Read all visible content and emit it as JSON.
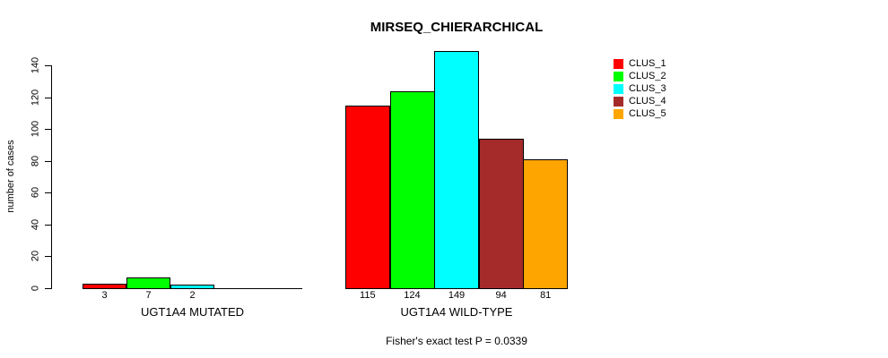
{
  "chart_data": {
    "type": "bar",
    "title": "MIRSEQ_CHIERARCHICAL",
    "ylabel": "number of cases",
    "xlabel": "",
    "caption": "Fisher's exact test P = 0.0339",
    "yticks": [
      0,
      20,
      40,
      60,
      80,
      100,
      120,
      140
    ],
    "ylim": [
      0,
      150
    ],
    "grid": false,
    "legend_position": "top-right",
    "categories": [
      "UGT1A4 MUTATED",
      "UGT1A4 WILD-TYPE"
    ],
    "series": [
      {
        "name": "CLUS_1",
        "color": "#FF0000",
        "values": [
          3,
          115
        ]
      },
      {
        "name": "CLUS_2",
        "color": "#00FF00",
        "values": [
          7,
          124
        ]
      },
      {
        "name": "CLUS_3",
        "color": "#00FFFF",
        "values": [
          2,
          149
        ]
      },
      {
        "name": "CLUS_4",
        "color": "#A52A2A",
        "values": [
          0,
          94
        ]
      },
      {
        "name": "CLUS_5",
        "color": "#FFA500",
        "values": [
          0,
          81
        ]
      }
    ],
    "bar_value_labels": {
      "UGT1A4 MUTATED": [
        3,
        7,
        2
      ],
      "UGT1A4 WILD-TYPE": [
        115,
        124,
        149,
        94,
        81
      ]
    }
  }
}
